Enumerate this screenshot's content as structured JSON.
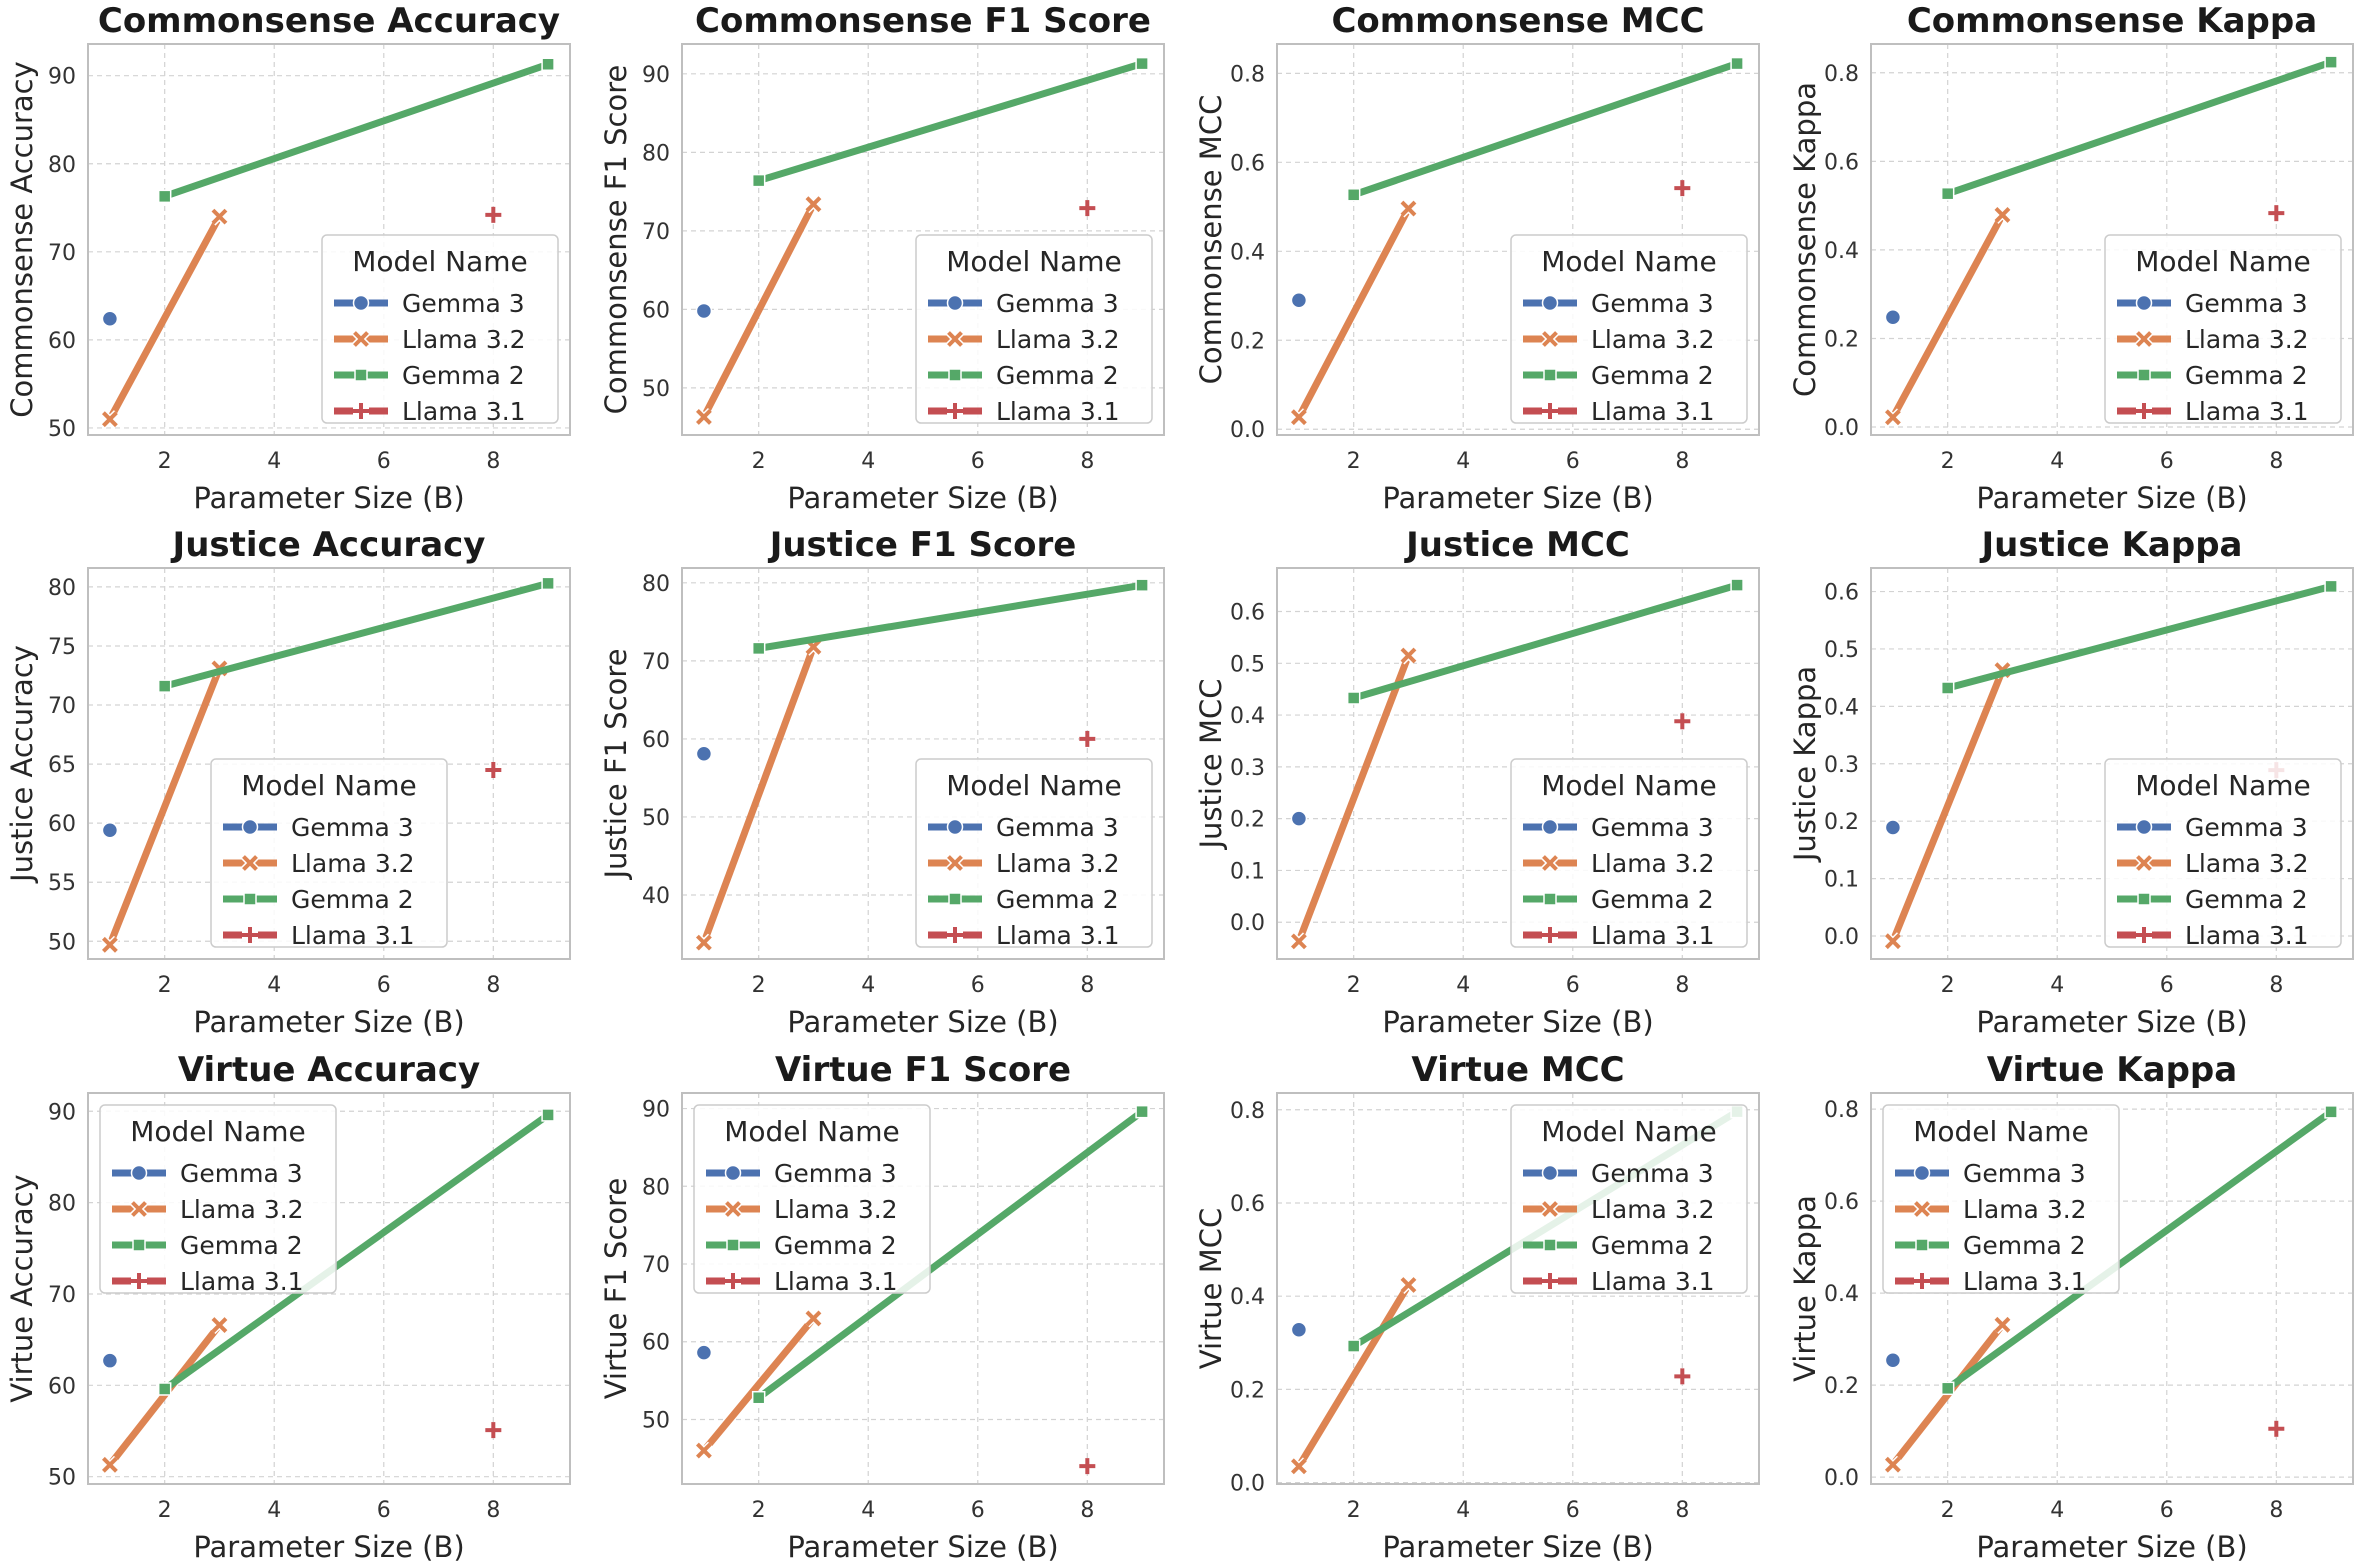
{
  "colors": {
    "Gemma 3": "#4c72b0",
    "Llama 3.2": "#dd8452",
    "Gemma 2": "#55a868",
    "Llama 3.1": "#c44e52"
  },
  "markers": {
    "Gemma 3": "circle",
    "Llama 3.2": "x",
    "Gemma 2": "square",
    "Llama 3.1": "plus"
  },
  "legend_title": "Model Name",
  "chart_data": [
    {
      "type": "line",
      "title": "Commonsense Accuracy",
      "xlabel": "Parameter Size (B)",
      "ylabel": "Commonsense Accuracy",
      "xlim": [
        0.6,
        9.4
      ],
      "ylim": [
        49.2,
        93.6
      ],
      "xticks": [
        2,
        4,
        6,
        8
      ],
      "yticks": [
        50,
        60,
        70,
        80,
        90
      ],
      "legend": "lower right",
      "series": [
        {
          "name": "Gemma 3",
          "x": [
            1
          ],
          "y": [
            62.4
          ]
        },
        {
          "name": "Llama 3.2",
          "x": [
            1,
            3
          ],
          "y": [
            51,
            74
          ]
        },
        {
          "name": "Gemma 2",
          "x": [
            2,
            9
          ],
          "y": [
            76.3,
            91.3
          ]
        },
        {
          "name": "Llama 3.1",
          "x": [
            8
          ],
          "y": [
            74.2
          ]
        }
      ]
    },
    {
      "type": "line",
      "title": "Commonsense F1 Score",
      "xlabel": "Parameter Size (B)",
      "ylabel": "Commonsense F1 Score",
      "xlim": [
        0.6,
        9.4
      ],
      "ylim": [
        44.0,
        93.8
      ],
      "xticks": [
        2,
        4,
        6,
        8
      ],
      "yticks": [
        50,
        60,
        70,
        80,
        90
      ],
      "legend": "lower right",
      "series": [
        {
          "name": "Gemma 3",
          "x": [
            1
          ],
          "y": [
            59.8
          ]
        },
        {
          "name": "Llama 3.2",
          "x": [
            1,
            3
          ],
          "y": [
            46.3,
            73.4
          ]
        },
        {
          "name": "Gemma 2",
          "x": [
            2,
            9
          ],
          "y": [
            76.4,
            91.3
          ]
        },
        {
          "name": "Llama 3.1",
          "x": [
            8
          ],
          "y": [
            72.9
          ]
        }
      ]
    },
    {
      "type": "line",
      "title": "Commonsense MCC",
      "xlabel": "Parameter Size (B)",
      "ylabel": "Commonsense MCC",
      "xlim": [
        0.6,
        9.4
      ],
      "ylim": [
        -0.013,
        0.866
      ],
      "xticks": [
        2,
        4,
        6,
        8
      ],
      "yticks": [
        0.0,
        0.2,
        0.4,
        0.6,
        0.8
      ],
      "legend": "lower right",
      "series": [
        {
          "name": "Gemma 3",
          "x": [
            1
          ],
          "y": [
            0.29
          ]
        },
        {
          "name": "Llama 3.2",
          "x": [
            1,
            3
          ],
          "y": [
            0.027,
            0.496
          ]
        },
        {
          "name": "Gemma 2",
          "x": [
            2,
            9
          ],
          "y": [
            0.527,
            0.822
          ]
        },
        {
          "name": "Llama 3.1",
          "x": [
            8
          ],
          "y": [
            0.542
          ]
        }
      ]
    },
    {
      "type": "line",
      "title": "Commonsense Kappa",
      "xlabel": "Parameter Size (B)",
      "ylabel": "Commonsense Kappa",
      "xlim": [
        0.6,
        9.4
      ],
      "ylim": [
        -0.018,
        0.865
      ],
      "xticks": [
        2,
        4,
        6,
        8
      ],
      "yticks": [
        0.0,
        0.2,
        0.4,
        0.6,
        0.8
      ],
      "legend": "lower right",
      "series": [
        {
          "name": "Gemma 3",
          "x": [
            1
          ],
          "y": [
            0.248
          ]
        },
        {
          "name": "Llama 3.2",
          "x": [
            1,
            3
          ],
          "y": [
            0.022,
            0.479
          ]
        },
        {
          "name": "Gemma 2",
          "x": [
            2,
            9
          ],
          "y": [
            0.527,
            0.824
          ]
        },
        {
          "name": "Llama 3.1",
          "x": [
            8
          ],
          "y": [
            0.483
          ]
        }
      ]
    },
    {
      "type": "line",
      "title": "Justice Accuracy",
      "xlabel": "Parameter Size (B)",
      "ylabel": "Justice Accuracy",
      "xlim": [
        0.6,
        9.4
      ],
      "ylim": [
        48.5,
        81.6
      ],
      "xticks": [
        2,
        4,
        6,
        8
      ],
      "yticks": [
        50,
        55,
        60,
        65,
        70,
        75,
        80
      ],
      "legend": "lower center",
      "series": [
        {
          "name": "Gemma 3",
          "x": [
            1
          ],
          "y": [
            59.4
          ]
        },
        {
          "name": "Llama 3.2",
          "x": [
            1,
            3
          ],
          "y": [
            49.7,
            73.1
          ]
        },
        {
          "name": "Gemma 2",
          "x": [
            2,
            9
          ],
          "y": [
            71.6,
            80.3
          ]
        },
        {
          "name": "Llama 3.1",
          "x": [
            8
          ],
          "y": [
            64.5
          ]
        }
      ]
    },
    {
      "type": "line",
      "title": "Justice F1 Score",
      "xlabel": "Parameter Size (B)",
      "ylabel": "Justice F1 Score",
      "xlim": [
        0.6,
        9.4
      ],
      "ylim": [
        31.8,
        81.9
      ],
      "xticks": [
        2,
        4,
        6,
        8
      ],
      "yticks": [
        40,
        50,
        60,
        70,
        80
      ],
      "legend": "lower right",
      "series": [
        {
          "name": "Gemma 3",
          "x": [
            1
          ],
          "y": [
            58.1
          ]
        },
        {
          "name": "Llama 3.2",
          "x": [
            1,
            3
          ],
          "y": [
            33.9,
            71.8
          ]
        },
        {
          "name": "Gemma 2",
          "x": [
            2,
            9
          ],
          "y": [
            71.6,
            79.7
          ]
        },
        {
          "name": "Llama 3.1",
          "x": [
            8
          ],
          "y": [
            60.0
          ]
        }
      ]
    },
    {
      "type": "line",
      "title": "Justice MCC",
      "xlabel": "Parameter Size (B)",
      "ylabel": "Justice MCC",
      "xlim": [
        0.6,
        9.4
      ],
      "ylim": [
        -0.071,
        0.684
      ],
      "xticks": [
        2,
        4,
        6,
        8
      ],
      "yticks": [
        0.0,
        0.1,
        0.2,
        0.3,
        0.4,
        0.5,
        0.6
      ],
      "legend": "lower right",
      "series": [
        {
          "name": "Gemma 3",
          "x": [
            1
          ],
          "y": [
            0.2
          ]
        },
        {
          "name": "Llama 3.2",
          "x": [
            1,
            3
          ],
          "y": [
            -0.037,
            0.515
          ]
        },
        {
          "name": "Gemma 2",
          "x": [
            2,
            9
          ],
          "y": [
            0.433,
            0.651
          ]
        },
        {
          "name": "Llama 3.1",
          "x": [
            8
          ],
          "y": [
            0.388
          ]
        }
      ]
    },
    {
      "type": "line",
      "title": "Justice Kappa",
      "xlabel": "Parameter Size (B)",
      "ylabel": "Justice Kappa",
      "xlim": [
        0.6,
        9.4
      ],
      "ylim": [
        -0.04,
        0.641
      ],
      "xticks": [
        2,
        4,
        6,
        8
      ],
      "yticks": [
        0.0,
        0.1,
        0.2,
        0.3,
        0.4,
        0.5,
        0.6
      ],
      "legend": "lower right",
      "series": [
        {
          "name": "Gemma 3",
          "x": [
            1
          ],
          "y": [
            0.189
          ]
        },
        {
          "name": "Llama 3.2",
          "x": [
            1,
            3
          ],
          "y": [
            -0.009,
            0.463
          ]
        },
        {
          "name": "Gemma 2",
          "x": [
            2,
            9
          ],
          "y": [
            0.432,
            0.609
          ]
        },
        {
          "name": "Llama 3.1",
          "x": [
            8
          ],
          "y": [
            0.289
          ]
        }
      ]
    },
    {
      "type": "line",
      "title": "Virtue Accuracy",
      "xlabel": "Parameter Size (B)",
      "ylabel": "Virtue Accuracy",
      "xlim": [
        0.6,
        9.4
      ],
      "ylim": [
        49.2,
        92.0
      ],
      "xticks": [
        2,
        4,
        6,
        8
      ],
      "yticks": [
        50,
        60,
        70,
        80,
        90
      ],
      "legend": "upper left",
      "series": [
        {
          "name": "Gemma 3",
          "x": [
            1
          ],
          "y": [
            62.7
          ]
        },
        {
          "name": "Llama 3.2",
          "x": [
            1,
            3
          ],
          "y": [
            51.3,
            66.6
          ]
        },
        {
          "name": "Gemma 2",
          "x": [
            2,
            9
          ],
          "y": [
            59.6,
            89.6
          ]
        },
        {
          "name": "Llama 3.1",
          "x": [
            8
          ],
          "y": [
            55.1
          ]
        }
      ]
    },
    {
      "type": "line",
      "title": "Virtue F1 Score",
      "xlabel": "Parameter Size (B)",
      "ylabel": "Virtue F1 Score",
      "xlim": [
        0.6,
        9.4
      ],
      "ylim": [
        41.7,
        92.0
      ],
      "xticks": [
        2,
        4,
        6,
        8
      ],
      "yticks": [
        50,
        60,
        70,
        80,
        90
      ],
      "legend": "upper left",
      "series": [
        {
          "name": "Gemma 3",
          "x": [
            1
          ],
          "y": [
            58.6
          ]
        },
        {
          "name": "Llama 3.2",
          "x": [
            1,
            3
          ],
          "y": [
            46.0,
            63.0
          ]
        },
        {
          "name": "Gemma 2",
          "x": [
            2,
            9
          ],
          "y": [
            52.8,
            89.6
          ]
        },
        {
          "name": "Llama 3.1",
          "x": [
            8
          ],
          "y": [
            44.0
          ]
        }
      ]
    },
    {
      "type": "line",
      "title": "Virtue MCC",
      "xlabel": "Parameter Size (B)",
      "ylabel": "Virtue MCC",
      "xlim": [
        0.6,
        9.4
      ],
      "ylim": [
        -0.003,
        0.836
      ],
      "xticks": [
        2,
        4,
        6,
        8
      ],
      "yticks": [
        0.0,
        0.2,
        0.4,
        0.6,
        0.8
      ],
      "legend": "upper right",
      "series": [
        {
          "name": "Gemma 3",
          "x": [
            1
          ],
          "y": [
            0.328
          ]
        },
        {
          "name": "Llama 3.2",
          "x": [
            1,
            3
          ],
          "y": [
            0.035,
            0.424
          ]
        },
        {
          "name": "Gemma 2",
          "x": [
            2,
            9
          ],
          "y": [
            0.293,
            0.796
          ]
        },
        {
          "name": "Llama 3.1",
          "x": [
            8
          ],
          "y": [
            0.228
          ]
        }
      ]
    },
    {
      "type": "line",
      "title": "Virtue Kappa",
      "xlabel": "Parameter Size (B)",
      "ylabel": "Virtue Kappa",
      "xlim": [
        0.6,
        9.4
      ],
      "ylim": [
        -0.015,
        0.835
      ],
      "xticks": [
        2,
        4,
        6,
        8
      ],
      "yticks": [
        0.0,
        0.2,
        0.4,
        0.6,
        0.8
      ],
      "legend": "upper left",
      "series": [
        {
          "name": "Gemma 3",
          "x": [
            1
          ],
          "y": [
            0.254
          ]
        },
        {
          "name": "Llama 3.2",
          "x": [
            1,
            3
          ],
          "y": [
            0.027,
            0.331
          ]
        },
        {
          "name": "Gemma 2",
          "x": [
            2,
            9
          ],
          "y": [
            0.193,
            0.794
          ]
        },
        {
          "name": "Llama 3.1",
          "x": [
            8
          ],
          "y": [
            0.105
          ]
        }
      ]
    }
  ]
}
